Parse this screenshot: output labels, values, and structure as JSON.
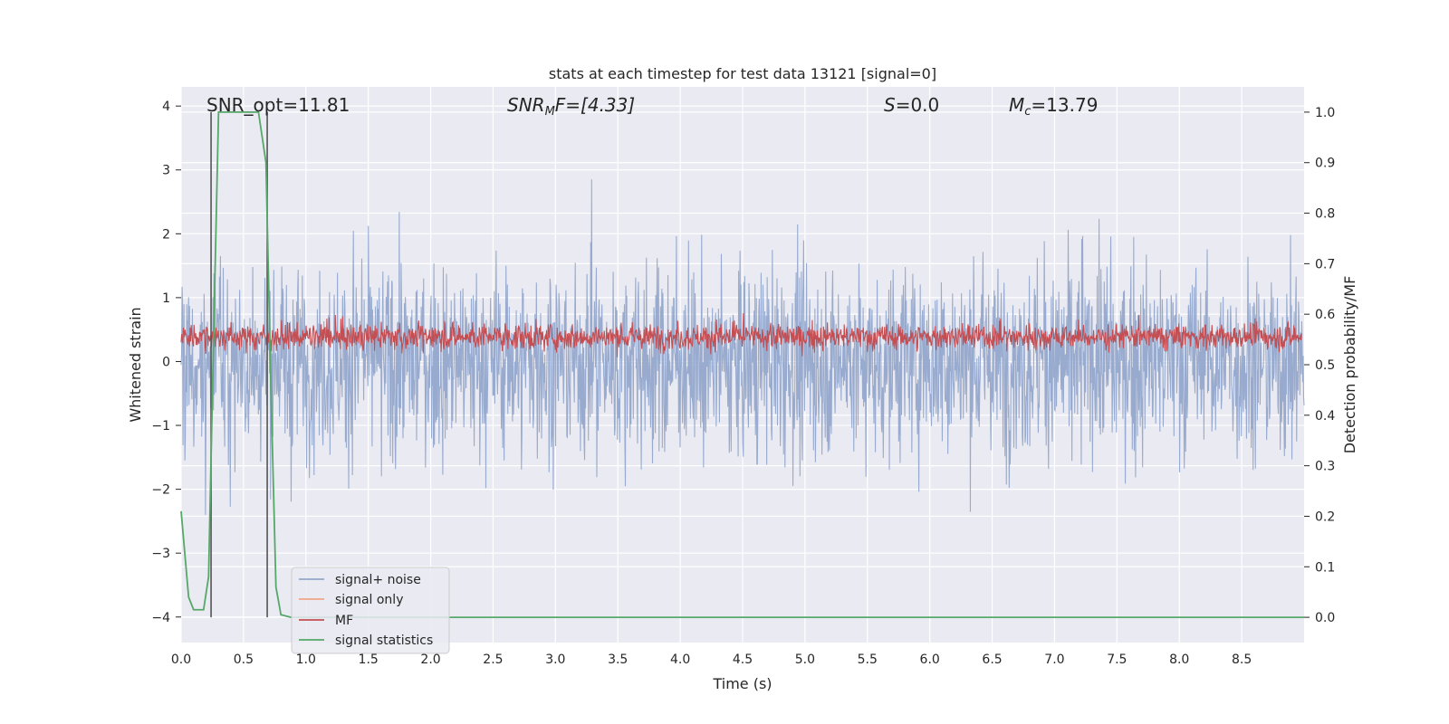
{
  "chart_data": {
    "type": "line",
    "title": "stats at each timestep for test data 13121 [signal=0]",
    "xlabel": "Time (s)",
    "ylabel": "Whitened strain",
    "ylabel_right": "Detection probability/MF",
    "xlim": [
      0.0,
      9.0
    ],
    "ylim": [
      -4.4,
      4.3
    ],
    "ylim_right": [
      -0.05,
      1.05
    ],
    "x_ticks": [
      "0.0",
      "0.5",
      "1.0",
      "1.5",
      "2.0",
      "2.5",
      "3.0",
      "3.5",
      "4.0",
      "4.5",
      "5.0",
      "5.5",
      "6.0",
      "6.5",
      "7.0",
      "7.5",
      "8.0",
      "8.5"
    ],
    "y_ticks": [
      "−4",
      "−3",
      "−2",
      "−1",
      "0",
      "1",
      "2",
      "3",
      "4"
    ],
    "y_ticks_right": [
      "0.0",
      "0.1",
      "0.2",
      "0.3",
      "0.4",
      "0.5",
      "0.6",
      "0.7",
      "0.8",
      "0.9",
      "1.0"
    ],
    "grid": true,
    "legend_position": "lower-left",
    "annotations": [
      {
        "text": "SNR_opt=11.81",
        "x": 0.2
      },
      {
        "text": "SNR",
        "sub": "M",
        "rest": "F=[4.33]",
        "x": 2.6,
        "italic": true
      },
      {
        "text": "S",
        "rest": "=0.0",
        "x": 5.6,
        "italic": true
      },
      {
        "text": "M",
        "sub": "c",
        "rest": "=13.79",
        "x": 6.6,
        "italic": true
      }
    ],
    "vlines": [
      0.24,
      0.69
    ],
    "series": [
      {
        "name": "signal+ noise",
        "color": "#94a8cc",
        "description": "whitened strain noise, roughly between -2.6 and 3.0 with spikes to ±4"
      },
      {
        "name": "signal only",
        "color": "#f0a58a",
        "values": []
      },
      {
        "name": "MF",
        "color": "#c44e52",
        "description": "matched filter output on right axis, ~0.52–0.62"
      },
      {
        "name": "signal statistics",
        "color": "#55a868",
        "points": [
          [
            0.0,
            0.21
          ],
          [
            0.06,
            0.04
          ],
          [
            0.1,
            0.015
          ],
          [
            0.18,
            0.015
          ],
          [
            0.22,
            0.08
          ],
          [
            0.26,
            0.55
          ],
          [
            0.3,
            1.0
          ],
          [
            0.62,
            1.0
          ],
          [
            0.68,
            0.9
          ],
          [
            0.72,
            0.45
          ],
          [
            0.76,
            0.06
          ],
          [
            0.8,
            0.005
          ],
          [
            0.88,
            0.0
          ],
          [
            9.0,
            0.0
          ]
        ]
      }
    ]
  }
}
